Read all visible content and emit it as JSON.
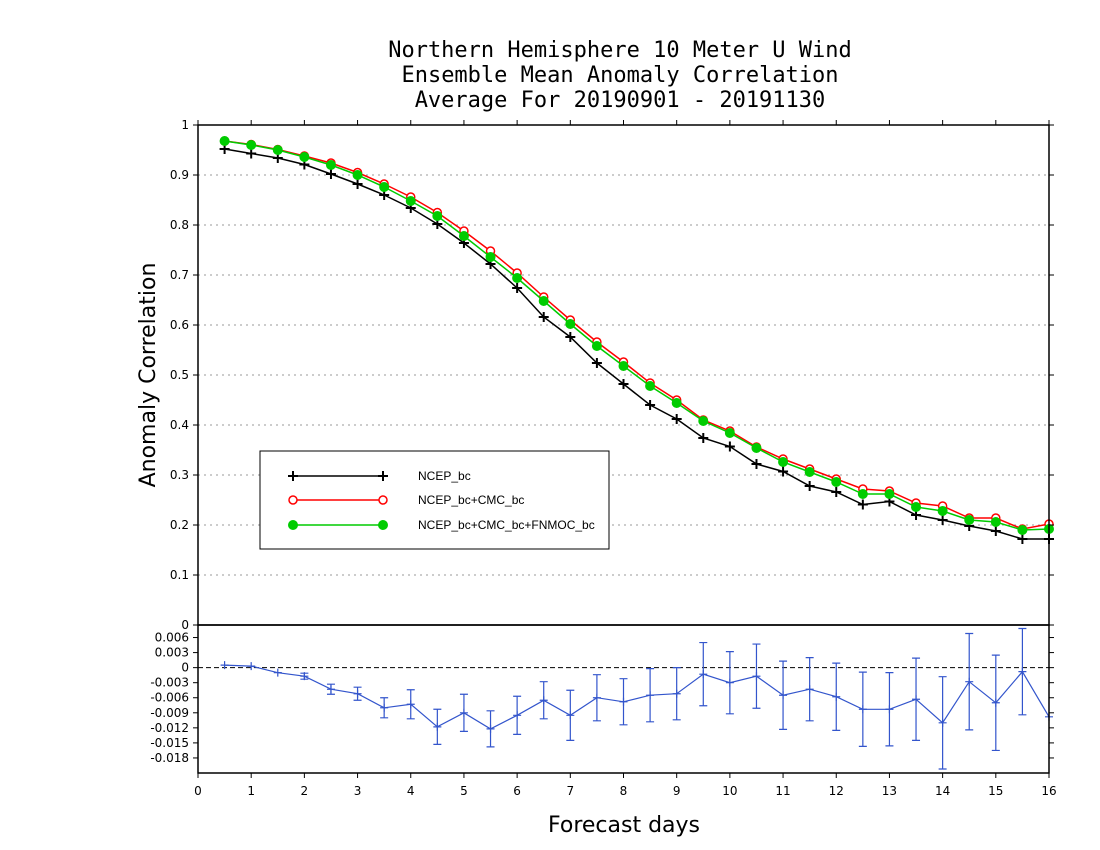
{
  "chart_data": {
    "type": "line",
    "title_lines": [
      "Northern Hemisphere 10 Meter U Wind",
      "Ensemble Mean Anomaly Correlation",
      "Average For 20190901 - 20191130"
    ],
    "xlabel": "Forecast days",
    "ylabel": "Anomaly Correlation",
    "xlim": [
      0,
      16
    ],
    "x_ticks": [
      "0",
      "1",
      "2",
      "3",
      "4",
      "5",
      "6",
      "7",
      "8",
      "9",
      "10",
      "11",
      "12",
      "13",
      "14",
      "15",
      "16"
    ],
    "top_panel": {
      "ylim": [
        0,
        1
      ],
      "y_ticks": [
        "0",
        "0.1",
        "0.2",
        "0.3",
        "0.4",
        "0.5",
        "0.6",
        "0.7",
        "0.8",
        "0.9",
        "1"
      ],
      "grid": "dotted horizontal",
      "legend_position": "lower-left",
      "x": [
        0.5,
        1,
        1.5,
        2,
        2.5,
        3,
        3.5,
        4,
        4.5,
        5,
        5.5,
        6,
        6.5,
        7,
        7.5,
        8,
        8.5,
        9,
        9.5,
        10,
        10.5,
        11,
        11.5,
        12,
        12.5,
        13,
        13.5,
        14,
        14.5,
        15,
        15.5,
        16
      ],
      "series": [
        {
          "name": "NCEP_bc",
          "color": "#000000",
          "marker": "plus",
          "values": [
            0.952,
            0.943,
            0.934,
            0.921,
            0.902,
            0.882,
            0.86,
            0.834,
            0.802,
            0.764,
            0.722,
            0.674,
            0.616,
            0.576,
            0.524,
            0.482,
            0.44,
            0.412,
            0.374,
            0.357,
            0.322,
            0.307,
            0.278,
            0.266,
            0.241,
            0.247,
            0.22,
            0.21,
            0.198,
            0.188,
            0.172,
            0.172
          ]
        },
        {
          "name": "NCEP_bc+CMC_bc",
          "color": "#ff0000",
          "marker": "open-circle",
          "values": [
            0.968,
            0.961,
            0.951,
            0.938,
            0.924,
            0.905,
            0.882,
            0.856,
            0.825,
            0.788,
            0.748,
            0.704,
            0.656,
            0.61,
            0.566,
            0.526,
            0.484,
            0.45,
            0.41,
            0.388,
            0.356,
            0.332,
            0.312,
            0.292,
            0.272,
            0.268,
            0.244,
            0.238,
            0.214,
            0.214,
            0.192,
            0.202
          ]
        },
        {
          "name": "NCEP_bc+CMC_bc+FNMOC_bc",
          "color": "#00cc00",
          "marker": "filled-circle",
          "values": [
            0.968,
            0.96,
            0.95,
            0.936,
            0.92,
            0.9,
            0.876,
            0.848,
            0.818,
            0.778,
            0.736,
            0.694,
            0.648,
            0.602,
            0.558,
            0.518,
            0.478,
            0.444,
            0.408,
            0.384,
            0.354,
            0.326,
            0.306,
            0.286,
            0.262,
            0.262,
            0.236,
            0.228,
            0.21,
            0.206,
            0.19,
            0.192
          ]
        }
      ]
    },
    "bottom_panel": {
      "ylim": [
        -0.021,
        0.0085
      ],
      "y_ticks": [
        "0.006",
        "0.003",
        "0",
        "-0.003",
        "-0.006",
        "-0.009",
        "-0.012",
        "-0.015",
        "-0.018"
      ],
      "zero_line": "dashed",
      "series": {
        "color": "#3355cc",
        "marker": "plus",
        "error_bars": true,
        "x": [
          0.5,
          1,
          1.5,
          2,
          2.5,
          3,
          3.5,
          4,
          4.5,
          5,
          5.5,
          6,
          6.5,
          7,
          7.5,
          8,
          8.5,
          9,
          9.5,
          10,
          10.5,
          11,
          11.5,
          12,
          12.5,
          13,
          13.5,
          14,
          14.5,
          15,
          15.5,
          16
        ],
        "values": [
          0.0005,
          0.0003,
          -0.001,
          -0.0017,
          -0.0043,
          -0.0052,
          -0.008,
          -0.0073,
          -0.0118,
          -0.009,
          -0.0122,
          -0.0095,
          -0.0065,
          -0.0095,
          -0.006,
          -0.0068,
          -0.0055,
          -0.0052,
          -0.0013,
          -0.003,
          -0.0017,
          -0.0055,
          -0.0043,
          -0.0058,
          -0.0083,
          -0.0083,
          -0.0063,
          -0.011,
          -0.0028,
          -0.007,
          -0.0008,
          -0.0098
        ],
        "errors": [
          0,
          0,
          0,
          0.0006,
          0.001,
          0.0013,
          0.002,
          0.0029,
          0.0035,
          0.0037,
          0.0036,
          0.0038,
          0.0037,
          0.005,
          0.0046,
          0.0046,
          0.0053,
          0.0052,
          0.0063,
          0.0062,
          0.0064,
          0.0068,
          0.0063,
          0.0067,
          0.0074,
          0.0073,
          0.0082,
          0.0092,
          0.0096,
          0.0095,
          0.0086,
          0
        ]
      }
    }
  }
}
